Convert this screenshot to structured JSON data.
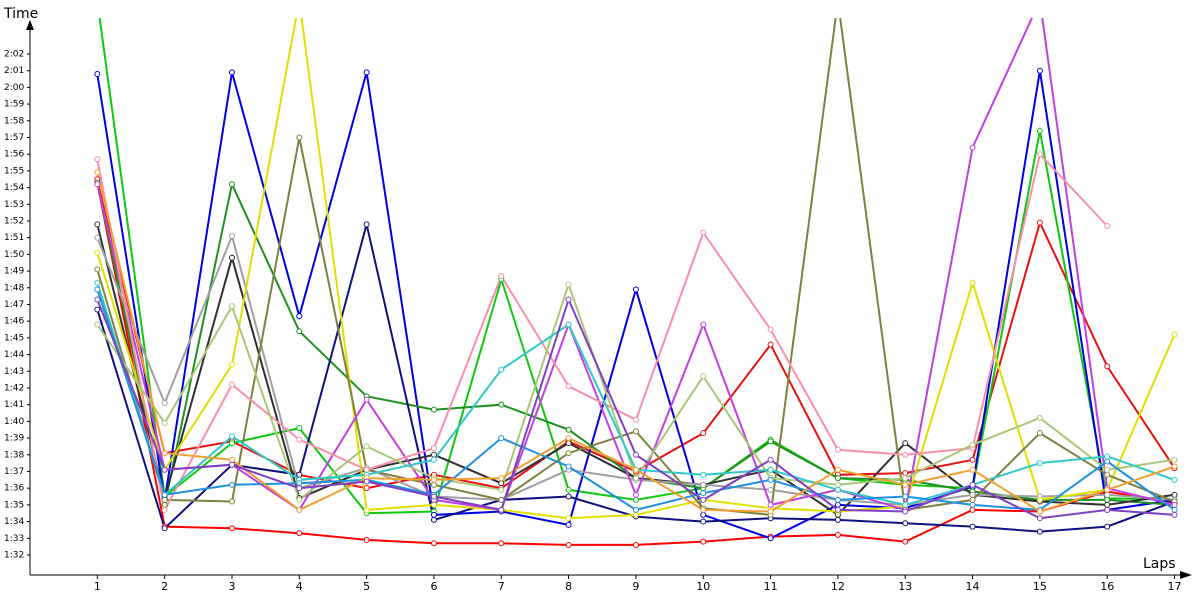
{
  "chart_data": {
    "type": "line",
    "ylabel": "Time",
    "xlabel": "Laps",
    "x": [
      1,
      2,
      3,
      4,
      5,
      6,
      7,
      8,
      9,
      10,
      11,
      12,
      13,
      14,
      15,
      16,
      17
    ],
    "xlim": [
      0,
      17.2
    ],
    "xticks": [
      1,
      2,
      3,
      4,
      5,
      6,
      7,
      8,
      9,
      10,
      11,
      12,
      13,
      14,
      15,
      16,
      17
    ],
    "ylim": [
      90.8,
      124
    ],
    "yticks": [
      {
        "value": 92,
        "label": "1:32"
      },
      {
        "value": 93,
        "label": "1:33"
      },
      {
        "value": 94,
        "label": "1:34"
      },
      {
        "value": 95,
        "label": "1:35"
      },
      {
        "value": 96,
        "label": "1:36"
      },
      {
        "value": 97,
        "label": "1:37"
      },
      {
        "value": 98,
        "label": "1:38"
      },
      {
        "value": 99,
        "label": "1:39"
      },
      {
        "value": 100,
        "label": "1:40"
      },
      {
        "value": 101,
        "label": "1:41"
      },
      {
        "value": 102,
        "label": "1:42"
      },
      {
        "value": 103,
        "label": "1:43"
      },
      {
        "value": 104,
        "label": "1:44"
      },
      {
        "value": 105,
        "label": "1:45"
      },
      {
        "value": 106,
        "label": "1:46"
      },
      {
        "value": 107,
        "label": "1:47"
      },
      {
        "value": 108,
        "label": "1:48"
      },
      {
        "value": 109,
        "label": "1:49"
      },
      {
        "value": 110,
        "label": "1:50"
      },
      {
        "value": 111,
        "label": "1:51"
      },
      {
        "value": 112,
        "label": "1:52"
      },
      {
        "value": 113,
        "label": "1:53"
      },
      {
        "value": 114,
        "label": "1:54"
      },
      {
        "value": 115,
        "label": "1:55"
      },
      {
        "value": 116,
        "label": "1:56"
      },
      {
        "value": 117,
        "label": "1:57"
      },
      {
        "value": 118,
        "label": "1:58"
      },
      {
        "value": 119,
        "label": "1:59"
      },
      {
        "value": 120,
        "label": "2:00"
      },
      {
        "value": 121,
        "label": "2:01"
      },
      {
        "value": 122,
        "label": "2:02"
      }
    ],
    "grid": false,
    "series": [
      {
        "color": "#ff0000",
        "values": [
          114.3,
          93.7,
          93.6,
          93.3,
          92.9,
          92.7,
          92.7,
          92.6,
          92.6,
          92.8,
          93.1,
          93.2,
          92.8,
          94.7,
          94.6,
          95.8,
          95.1
        ]
      },
      {
        "color": "#e81010",
        "values": [
          114.5,
          98.1,
          98.8,
          96.8,
          96.0,
          96.8,
          96.0,
          98.8,
          97.0,
          99.3,
          104.6,
          96.8,
          96.9,
          97.7,
          111.9,
          103.3,
          97.2
        ]
      },
      {
        "color": "#10c810",
        "values": [
          125.2,
          95.5,
          98.7,
          99.6,
          94.5,
          94.6,
          108.5,
          95.9,
          95.3,
          96.0,
          98.9,
          96.6,
          96.2,
          96.0,
          117.4,
          95.4,
          95.3
        ]
      },
      {
        "color": "#0000e6",
        "values": [
          120.8,
          95.3,
          120.9,
          106.3,
          120.9,
          94.4,
          94.6,
          93.8,
          107.9,
          94.4,
          93.0,
          95.0,
          94.8,
          96.1,
          121.0,
          94.7,
          95.3
        ]
      },
      {
        "color": "#209020",
        "values": [
          114.3,
          95.0,
          114.2,
          105.4,
          101.5,
          100.7,
          101.0,
          99.5,
          96.6,
          96.0,
          98.8,
          96.6,
          96.5,
          95.8,
          95.3,
          95.3,
          95.0
        ]
      },
      {
        "color": "#101080",
        "values": [
          106.7,
          93.6,
          97.4,
          96.8,
          111.8,
          94.1,
          95.3,
          95.5,
          94.3,
          94.0,
          94.2,
          94.1,
          93.9,
          93.7,
          93.4,
          93.7,
          95.2
        ]
      },
      {
        "color": "#303030",
        "values": [
          111.8,
          95.4,
          109.8,
          95.4,
          97.1,
          98.0,
          96.3,
          98.7,
          96.6,
          96.2,
          97.1,
          94.4,
          98.7,
          95.6,
          95.2,
          95.0,
          95.6
        ]
      },
      {
        "color": "#a0a0a0",
        "values": [
          111.0,
          101.1,
          111.1,
          96.0,
          97.2,
          95.5,
          95.3,
          97.1,
          96.5,
          96.2,
          95.9,
          95.3,
          95.0,
          95.6,
          95.5,
          95.6,
          95.3
        ]
      },
      {
        "color": "#e0e000",
        "values": [
          110.1,
          97.1,
          103.4,
          125.2,
          94.7,
          95.0,
          94.7,
          94.2,
          94.4,
          95.3,
          94.8,
          94.6,
          94.9,
          108.3,
          95.3,
          95.9,
          105.2
        ]
      },
      {
        "color": "#808040",
        "values": [
          109.1,
          95.3,
          95.2,
          117.0,
          97.1,
          96.2,
          95.3,
          98.1,
          99.4,
          94.8,
          94.4,
          125.2,
          94.7,
          95.3,
          99.3,
          96.8,
          95.2
        ]
      },
      {
        "color": "#c040e0",
        "values": [
          114.2,
          97.1,
          97.4,
          94.7,
          101.3,
          95.3,
          94.7,
          105.8,
          95.6,
          105.8,
          95.0,
          95.9,
          94.7,
          116.4,
          125.2,
          96.0,
          95.0
        ]
      },
      {
        "color": "#f890a8",
        "values": [
          115.7,
          94.7,
          102.2,
          98.9,
          97.1,
          98.4,
          108.7,
          102.1,
          100.1,
          111.3,
          105.5,
          98.3,
          98.0,
          98.4,
          116.0,
          111.7,
          null
        ]
      },
      {
        "color": "#a8c878",
        "values": [
          105.8,
          99.9,
          106.9,
          95.3,
          98.5,
          96.6,
          95.9,
          108.2,
          96.6,
          102.7,
          96.6,
          96.2,
          96.6,
          98.6,
          100.2,
          97.1,
          97.7
        ]
      },
      {
        "color": "#30c8c8",
        "values": [
          108.3,
          95.6,
          99.1,
          96.5,
          96.8,
          97.7,
          103.1,
          105.8,
          97.1,
          96.8,
          97.1,
          95.9,
          95.0,
          96.2,
          97.5,
          97.9,
          96.5
        ]
      },
      {
        "color": "#2090e0",
        "values": [
          107.9,
          95.6,
          96.2,
          96.3,
          96.5,
          95.6,
          99.0,
          97.3,
          94.7,
          95.7,
          96.5,
          95.3,
          95.5,
          95.0,
          94.7,
          97.6,
          94.7
        ]
      },
      {
        "color": "#f0a030",
        "values": [
          114.9,
          98.1,
          97.7,
          94.7,
          96.6,
          96.5,
          96.6,
          99.0,
          97.1,
          94.7,
          94.6,
          97.1,
          96.2,
          97.1,
          94.6,
          95.9,
          97.3
        ]
      },
      {
        "color": "#8040c0",
        "values": [
          107.3,
          97.1,
          97.4,
          96.0,
          96.4,
          95.5,
          94.7,
          107.3,
          98.0,
          95.3,
          97.7,
          94.7,
          94.6,
          96.2,
          94.2,
          94.7,
          94.4
        ]
      }
    ]
  }
}
